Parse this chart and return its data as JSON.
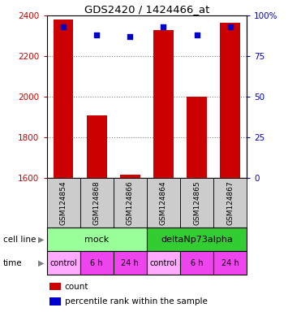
{
  "title": "GDS2420 / 1424466_at",
  "samples": [
    "GSM124854",
    "GSM124868",
    "GSM124866",
    "GSM124864",
    "GSM124865",
    "GSM124867"
  ],
  "bar_values": [
    2380,
    1910,
    1615,
    2330,
    2000,
    2365
  ],
  "bar_base": 1600,
  "percentile_values": [
    93,
    88,
    87,
    93,
    88,
    93
  ],
  "ylim_left": [
    1600,
    2400
  ],
  "ylim_right": [
    0,
    100
  ],
  "yticks_left": [
    1600,
    1800,
    2000,
    2200,
    2400
  ],
  "yticks_right": [
    0,
    25,
    50,
    75,
    100
  ],
  "bar_color": "#cc0000",
  "percentile_color": "#0000cc",
  "cell_line_groups": [
    {
      "label": "mock",
      "start": 0,
      "end": 3,
      "color": "#99ff99"
    },
    {
      "label": "deltaNp73alpha",
      "start": 3,
      "end": 6,
      "color": "#33cc33"
    }
  ],
  "time_labels": [
    "control",
    "6 h",
    "24 h",
    "control",
    "6 h",
    "24 h"
  ],
  "time_colors": [
    "#ffaaff",
    "#ee44ee",
    "#ee44ee",
    "#ffaaff",
    "#ee44ee",
    "#ee44ee"
  ],
  "sample_box_color": "#cccccc",
  "legend_items": [
    {
      "color": "#cc0000",
      "label": "count"
    },
    {
      "color": "#0000cc",
      "label": "percentile rank within the sample"
    }
  ],
  "cell_line_label": "cell line",
  "time_label": "time",
  "fig_width": 3.71,
  "fig_height": 3.84,
  "dpi": 100
}
